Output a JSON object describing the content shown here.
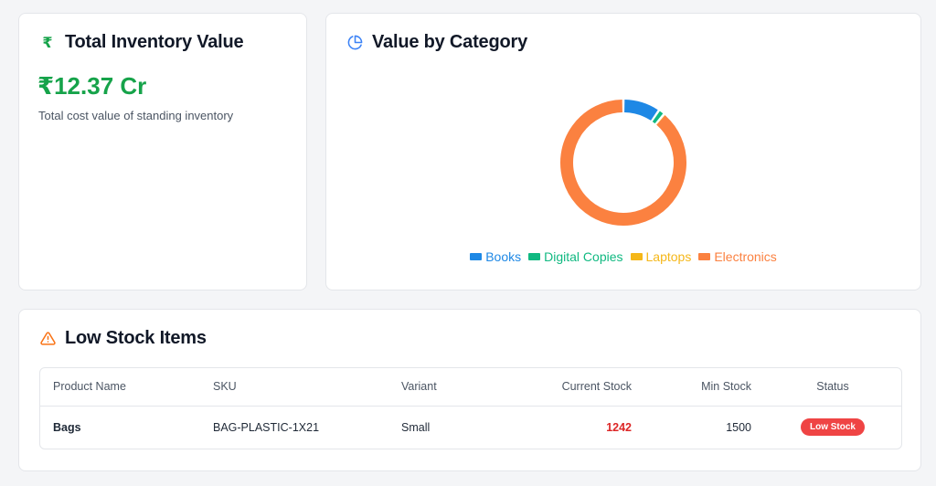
{
  "total_inventory": {
    "title": "Total Inventory Value",
    "icon": "rupee-icon",
    "value": "₹12.37 Cr",
    "description": "Total cost value of standing inventory",
    "accent": "#16a34a"
  },
  "value_by_category": {
    "title": "Value by Category",
    "icon": "pie-chart-icon",
    "chart_data": {
      "type": "pie",
      "style": "donut",
      "labels": [
        "Books",
        "Digital Copies",
        "Laptops",
        "Electronics"
      ],
      "values": [
        9.5,
        1.6,
        0.1,
        88.8
      ],
      "unit": "%",
      "colors": [
        "#1e88e5",
        "#10b981",
        "#f5b719",
        "#fb8140"
      ],
      "legend_position": "bottom"
    }
  },
  "low_stock": {
    "title": "Low Stock Items",
    "icon": "warning-icon",
    "columns": [
      "Product Name",
      "SKU",
      "Variant",
      "Current Stock",
      "Min Stock",
      "Status"
    ],
    "rows": [
      {
        "product_name": "Bags",
        "sku": "BAG-PLASTIC-1X21",
        "variant": "Small",
        "current_stock": "1242",
        "min_stock": "1500",
        "status": "Low Stock"
      }
    ]
  }
}
